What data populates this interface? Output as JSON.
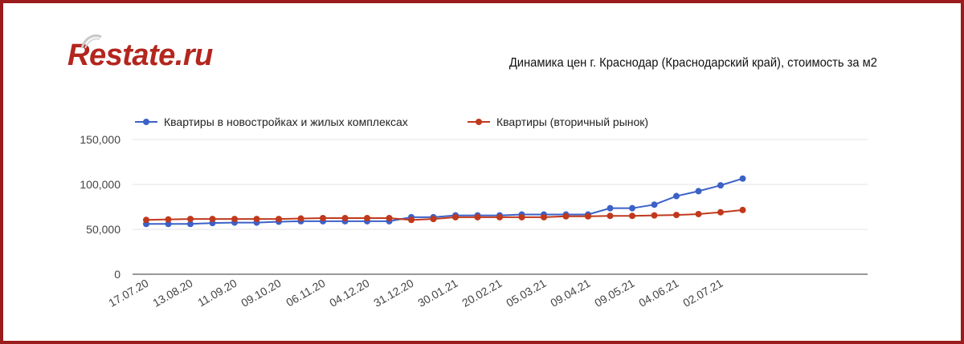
{
  "header": {
    "logo_text": "Restate.ru",
    "title": "Динамика цен г. Краснодар (Краснодарский край), стоимость за м2"
  },
  "colors": {
    "frame": "#9b1c1c",
    "logo": "#b3261e",
    "series_new": "#3c61c7",
    "series_secondary": "#c0391d",
    "grid": "#e3e3e3"
  },
  "chart_data": {
    "type": "line",
    "title": "Динамика цен г. Краснодар (Краснодарский край), стоимость за м2",
    "xlabel": "",
    "ylabel": "",
    "ylim": [
      0,
      150000
    ],
    "y_ticks": [
      "0",
      "50,000",
      "100,000",
      "150,000"
    ],
    "grid": true,
    "legend_position": "top-left",
    "x_tick_labels": [
      "17.07.20",
      "13.08.20",
      "11.09.20",
      "09.10.20",
      "06.11.20",
      "04.12.20",
      "31.12.20",
      "30.01.21",
      "20.02.21",
      "05.03.21",
      "09.04.21",
      "09.05.21",
      "04.06.21",
      "02.07.21"
    ],
    "x": [
      "17.07.20",
      "31.07.20",
      "13.08.20",
      "28.08.20",
      "11.09.20",
      "25.09.20",
      "09.10.20",
      "23.10.20",
      "06.11.20",
      "20.11.20",
      "04.12.20",
      "18.12.20",
      "31.12.20",
      "15.01.21",
      "30.01.21",
      "10.02.21",
      "20.02.21",
      "28.02.21",
      "05.03.21",
      "20.03.21",
      "09.04.21",
      "24.04.21",
      "09.05.21",
      "20.05.21",
      "04.06.21",
      "18.06.21",
      "02.07.21",
      "16.07.21"
    ],
    "series": [
      {
        "name": "Квартиры в новостройках и жилых комплексах",
        "values": [
          56000,
          56000,
          56000,
          57000,
          57500,
          57500,
          58500,
          59000,
          59000,
          59000,
          59000,
          59000,
          63500,
          63500,
          65500,
          65500,
          65500,
          66500,
          66500,
          66500,
          66500,
          73500,
          73500,
          77500,
          87000,
          92500,
          99000,
          106500
        ]
      },
      {
        "name": "Квартиры (вторичный рынок)",
        "values": [
          60500,
          61000,
          61500,
          61500,
          61500,
          61500,
          61500,
          62000,
          62500,
          62500,
          62500,
          62500,
          60500,
          61500,
          63500,
          63500,
          63500,
          63500,
          63500,
          64500,
          64500,
          65000,
          65000,
          65500,
          66000,
          67000,
          69000,
          71500
        ]
      }
    ]
  }
}
